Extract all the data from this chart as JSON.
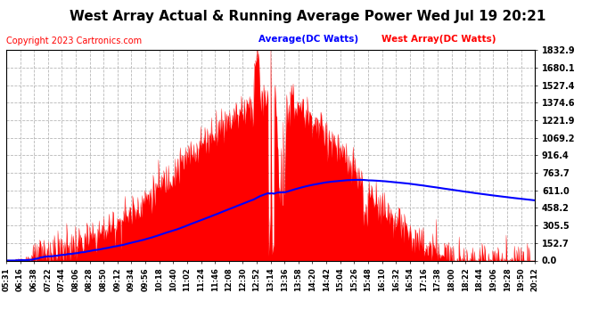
{
  "title": "West Array Actual & Running Average Power Wed Jul 19 20:21",
  "copyright": "Copyright 2023 Cartronics.com",
  "legend_avg": "Average(DC Watts)",
  "legend_west": "West Array(DC Watts)",
  "ymax": 1832.9,
  "yticks": [
    0.0,
    152.7,
    305.5,
    458.2,
    611.0,
    763.7,
    916.4,
    1069.2,
    1221.9,
    1374.6,
    1527.4,
    1680.1,
    1832.9
  ],
  "xtick_labels": [
    "05:31",
    "06:16",
    "06:38",
    "07:22",
    "07:44",
    "08:06",
    "08:28",
    "08:50",
    "09:12",
    "09:34",
    "09:56",
    "10:18",
    "10:40",
    "11:02",
    "11:24",
    "11:46",
    "12:08",
    "12:30",
    "12:52",
    "13:14",
    "13:36",
    "13:58",
    "14:20",
    "14:42",
    "15:04",
    "15:26",
    "15:48",
    "16:10",
    "16:32",
    "16:54",
    "17:16",
    "17:38",
    "18:00",
    "18:22",
    "18:44",
    "19:06",
    "19:28",
    "19:50",
    "20:12"
  ],
  "bg_color": "#ffffff",
  "plot_bg_color": "#ffffff",
  "grid_color": "#b0b0b0",
  "bar_color": "#ff0000",
  "avg_line_color": "#0000ff",
  "title_color": "#000000",
  "copyright_color": "#ff0000",
  "legend_avg_color": "#0000ff",
  "legend_west_color": "#ff0000",
  "title_fontsize": 11,
  "copyright_fontsize": 7
}
